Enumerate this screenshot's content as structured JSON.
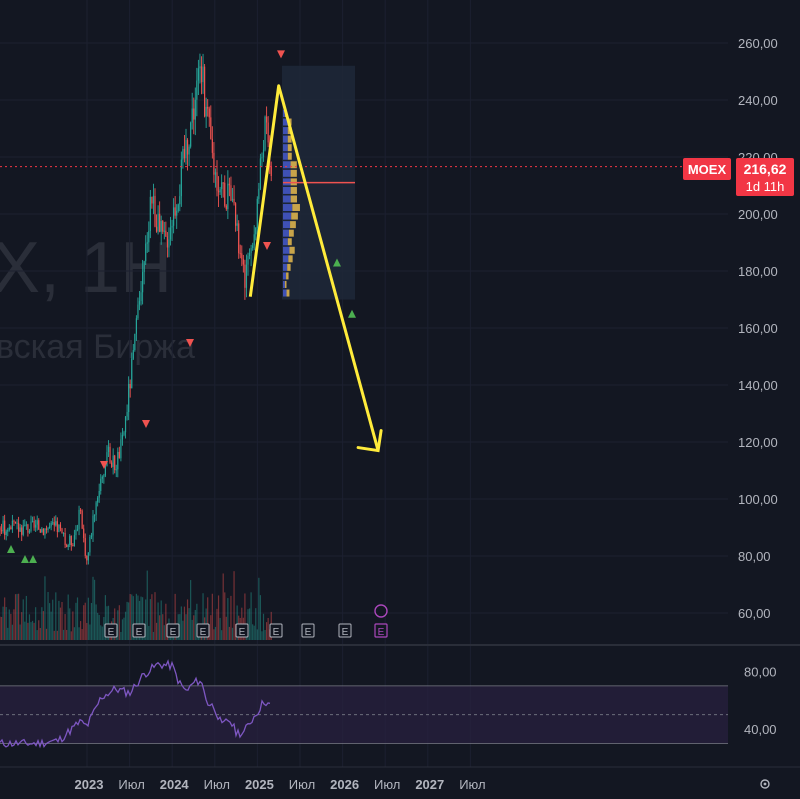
{
  "watermark": {
    "symbol": "X, 1Н",
    "exchange": "вская Биржа"
  },
  "price_badge": {
    "ticker": "MOEX",
    "price": "216,62",
    "countdown": "1d 11h"
  },
  "colors": {
    "background": "#131722",
    "up": "#26a69a",
    "down": "#ef5350",
    "projection": "#ffeb3b",
    "rsi": "#7e57c2",
    "rsi_band": "#2a2140",
    "volume_profile_blue": "#3f51b5",
    "volume_profile_orange": "#c8a44a",
    "badge": "#f23645"
  },
  "chart_data": [
    {
      "type": "candlestick",
      "x_ticks": [
        "2023",
        "Июл",
        "2024",
        "Июл",
        "2025",
        "Июл",
        "2026",
        "Июл",
        "2027",
        "Июл"
      ],
      "y_ticks": [
        "260,00",
        "240,00",
        "220,00",
        "200,00",
        "180,00",
        "160,00",
        "140,00",
        "120,00",
        "100,00",
        "80,00",
        "60,00"
      ],
      "ylim": [
        50,
        265
      ],
      "xlim": [
        "2022-06",
        "2027-12"
      ],
      "close_path": [
        {
          "x": "2022-09",
          "y": 90
        },
        {
          "x": "2022-10",
          "y": 84
        },
        {
          "x": "2022-11",
          "y": 86
        },
        {
          "x": "2022-12",
          "y": 95
        },
        {
          "x": "2023-01",
          "y": 78
        },
        {
          "x": "2023-02",
          "y": 96
        },
        {
          "x": "2023-03",
          "y": 108
        },
        {
          "x": "2023-04",
          "y": 115
        },
        {
          "x": "2023-05",
          "y": 112
        },
        {
          "x": "2023-06",
          "y": 120
        },
        {
          "x": "2023-07",
          "y": 140
        },
        {
          "x": "2023-08",
          "y": 160
        },
        {
          "x": "2023-09",
          "y": 180
        },
        {
          "x": "2023-10",
          "y": 208
        },
        {
          "x": "2023-11",
          "y": 195
        },
        {
          "x": "2023-12",
          "y": 190
        },
        {
          "x": "2024-01",
          "y": 200
        },
        {
          "x": "2024-02",
          "y": 210
        },
        {
          "x": "2024-03",
          "y": 225
        },
        {
          "x": "2024-04",
          "y": 238
        },
        {
          "x": "2024-05",
          "y": 252
        },
        {
          "x": "2024-06",
          "y": 232
        },
        {
          "x": "2024-07",
          "y": 215
        },
        {
          "x": "2024-08",
          "y": 210
        },
        {
          "x": "2024-09",
          "y": 205
        },
        {
          "x": "2024-10",
          "y": 195
        },
        {
          "x": "2024-11",
          "y": 178
        },
        {
          "x": "2024-12",
          "y": 182
        },
        {
          "x": "2025-01",
          "y": 205
        },
        {
          "x": "2025-02",
          "y": 232
        },
        {
          "x": "2025-03",
          "y": 216.62
        }
      ],
      "current_price": 216.62,
      "projection_line": [
        {
          "x": "2024-12",
          "y": 171
        },
        {
          "x": "2025-04",
          "y": 245
        },
        {
          "x": "2026-06",
          "y": 117
        }
      ],
      "event_markers": {
        "label": "E",
        "count": 8
      }
    },
    {
      "type": "line",
      "name": "RSI",
      "y_ticks": [
        "80,00",
        "40,00"
      ],
      "ylim": [
        22,
        88
      ],
      "band": [
        30,
        70
      ],
      "midline": 50,
      "values": [
        {
          "x": "2022-06",
          "y": 30
        },
        {
          "x": "2022-09",
          "y": 32
        },
        {
          "x": "2022-12",
          "y": 45
        },
        {
          "x": "2023-01",
          "y": 42
        },
        {
          "x": "2023-03",
          "y": 62
        },
        {
          "x": "2023-05",
          "y": 68
        },
        {
          "x": "2023-07",
          "y": 65
        },
        {
          "x": "2023-09",
          "y": 78
        },
        {
          "x": "2023-11",
          "y": 85
        },
        {
          "x": "2024-01",
          "y": 84
        },
        {
          "x": "2024-02",
          "y": 72
        },
        {
          "x": "2024-03",
          "y": 66
        },
        {
          "x": "2024-04",
          "y": 72
        },
        {
          "x": "2024-05",
          "y": 74
        },
        {
          "x": "2024-06",
          "y": 58
        },
        {
          "x": "2024-07",
          "y": 55
        },
        {
          "x": "2024-08",
          "y": 42
        },
        {
          "x": "2024-09",
          "y": 47
        },
        {
          "x": "2024-10",
          "y": 38
        },
        {
          "x": "2024-11",
          "y": 37
        },
        {
          "x": "2024-12",
          "y": 45
        },
        {
          "x": "2025-01",
          "y": 52
        },
        {
          "x": "2025-02",
          "y": 60
        },
        {
          "x": "2025-03",
          "y": 55
        }
      ]
    }
  ]
}
